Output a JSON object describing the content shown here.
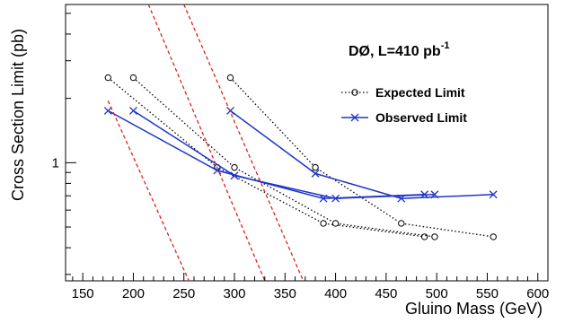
{
  "chart_data": {
    "type": "line",
    "title": "DØ, L=410 pb",
    "title_superscript": "-1",
    "xlabel": "Gluino Mass (GeV)",
    "ylabel": "Cross Section Limit (pb)",
    "xlim": [
      133,
      610
    ],
    "xscale": "linear",
    "yscale": "log",
    "ylim": [
      0.28,
      5.5
    ],
    "x_tick_labels": [
      "150",
      "200",
      "250",
      "300",
      "350",
      "400",
      "450",
      "500",
      "550",
      "600"
    ],
    "x_ticks": [
      150,
      200,
      250,
      300,
      350,
      400,
      450,
      500,
      550,
      600
    ],
    "y_tick_labels": [
      "1"
    ],
    "y_ticks": [
      1
    ],
    "legend_position": "top-right",
    "grid": false,
    "series": [
      {
        "name": "Expected Limit",
        "style": "dotted",
        "marker": "circle",
        "color": "#000000",
        "curves": [
          {
            "x": [
              175,
              283,
              388,
              488
            ],
            "y": [
              2.5,
              0.95,
              0.52,
              0.45
            ]
          },
          {
            "x": [
              200,
              300,
              400,
              498
            ],
            "y": [
              2.5,
              0.95,
              0.52,
              0.45
            ]
          },
          {
            "x": [
              296,
              380,
              465,
              556
            ],
            "y": [
              2.5,
              0.95,
              0.52,
              0.45
            ]
          }
        ]
      },
      {
        "name": "Observed Limit",
        "style": "solid",
        "marker": "x",
        "color": "#1f35c9",
        "curves": [
          {
            "x": [
              175,
              283,
              388,
              488
            ],
            "y": [
              1.75,
              0.92,
              0.68,
              0.71
            ]
          },
          {
            "x": [
              200,
              300,
              400,
              498
            ],
            "y": [
              1.75,
              0.87,
              0.68,
              0.71
            ]
          },
          {
            "x": [
              296,
              380,
              465,
              556
            ],
            "y": [
              1.75,
              0.89,
              0.68,
              0.71
            ]
          }
        ]
      },
      {
        "style": "dashed",
        "color": "#e0201b",
        "curves": [
          {
            "x": [
              175,
              255
            ],
            "y": [
              1.95,
              0.28
            ]
          },
          {
            "x": [
              215,
              330
            ],
            "y": [
              5.5,
              0.28
            ]
          },
          {
            "x": [
              250,
              368
            ],
            "y": [
              5.5,
              0.28
            ]
          }
        ]
      }
    ]
  }
}
